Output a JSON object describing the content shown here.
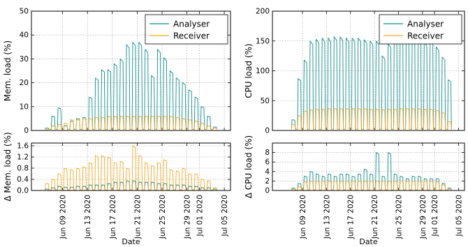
{
  "colors": {
    "analyser": "#0f8a8a",
    "receiver": "#f5a623",
    "grid": "#9a9a9a"
  },
  "chart_data": [
    {
      "id": "mem_load",
      "type": "line",
      "ylabel": "Mem. load (%)",
      "xlabel": "",
      "ylim": [
        0,
        50
      ],
      "yticks": [
        0,
        10,
        20,
        30,
        40,
        50
      ],
      "ytick_labels": [
        "0",
        "10",
        "20",
        "30",
        "40",
        "50"
      ],
      "x_range": [
        "2020-06-04",
        "2020-07-06"
      ],
      "grid": true,
      "legend_position": "top-right",
      "series": [
        {
          "name": "Analyser",
          "color_key": "analyser",
          "x": [
            "2020-06-06",
            "2020-06-07",
            "2020-06-08",
            "2020-06-09",
            "2020-06-10",
            "2020-06-11",
            "2020-06-12",
            "2020-06-13",
            "2020-06-14",
            "2020-06-15",
            "2020-06-16",
            "2020-06-17",
            "2020-06-18",
            "2020-06-19",
            "2020-06-20",
            "2020-06-21",
            "2020-06-22",
            "2020-06-23",
            "2020-06-24",
            "2020-06-25",
            "2020-06-26",
            "2020-06-27",
            "2020-06-28",
            "2020-06-29",
            "2020-06-30",
            "2020-07-01",
            "2020-07-02",
            "2020-07-03"
          ],
          "y": [
            1,
            6,
            9.5,
            2,
            4,
            5,
            5.5,
            14,
            22,
            25.5,
            25.5,
            28,
            30,
            36,
            37,
            37,
            34,
            23,
            34,
            30.5,
            25,
            22,
            20,
            17,
            14,
            10,
            6,
            1.5
          ]
        },
        {
          "name": "Receiver",
          "color_key": "receiver",
          "x": [
            "2020-06-06",
            "2020-06-07",
            "2020-06-08",
            "2020-06-09",
            "2020-06-10",
            "2020-06-11",
            "2020-06-12",
            "2020-06-13",
            "2020-06-14",
            "2020-06-15",
            "2020-06-16",
            "2020-06-17",
            "2020-06-18",
            "2020-06-19",
            "2020-06-20",
            "2020-06-21",
            "2020-06-22",
            "2020-06-23",
            "2020-06-24",
            "2020-06-25",
            "2020-06-26",
            "2020-06-27",
            "2020-06-28",
            "2020-06-29",
            "2020-06-30",
            "2020-07-01",
            "2020-07-02",
            "2020-07-03"
          ],
          "y": [
            0.5,
            2,
            2.5,
            3,
            4.5,
            4.5,
            5,
            5,
            5.5,
            5.5,
            6,
            6,
            6,
            6,
            6,
            6,
            6,
            6,
            6,
            6,
            6,
            5.5,
            5,
            4.5,
            4,
            3,
            2,
            1
          ]
        }
      ]
    },
    {
      "id": "cpu_load",
      "type": "line",
      "ylabel": "CPU load (%)",
      "xlabel": "",
      "ylim": [
        0,
        200
      ],
      "yticks": [
        0,
        50,
        100,
        150,
        200
      ],
      "ytick_labels": [
        "0",
        "50",
        "100",
        "150",
        "200"
      ],
      "x_range": [
        "2020-06-04",
        "2020-07-06"
      ],
      "grid": true,
      "legend_position": "top-right",
      "series": [
        {
          "name": "Analyser",
          "color_key": "analyser",
          "x": [
            "2020-06-07",
            "2020-06-08",
            "2020-06-09",
            "2020-06-10",
            "2020-06-11",
            "2020-06-12",
            "2020-06-13",
            "2020-06-14",
            "2020-06-15",
            "2020-06-16",
            "2020-06-17",
            "2020-06-18",
            "2020-06-19",
            "2020-06-20",
            "2020-06-21",
            "2020-06-22",
            "2020-06-23",
            "2020-06-24",
            "2020-06-25",
            "2020-06-26",
            "2020-06-27",
            "2020-06-28",
            "2020-06-29",
            "2020-06-30",
            "2020-07-01",
            "2020-07-02",
            "2020-07-03"
          ],
          "y": [
            18,
            87,
            118,
            150,
            153,
            155,
            155,
            157,
            157,
            155,
            155,
            155,
            152,
            150,
            150,
            125,
            145,
            153,
            157,
            157,
            152,
            150,
            148,
            155,
            140,
            123,
            85
          ]
        },
        {
          "name": "Receiver",
          "color_key": "receiver",
          "x": [
            "2020-06-07",
            "2020-06-08",
            "2020-06-09",
            "2020-06-10",
            "2020-06-11",
            "2020-06-12",
            "2020-06-13",
            "2020-06-14",
            "2020-06-15",
            "2020-06-16",
            "2020-06-17",
            "2020-06-18",
            "2020-06-19",
            "2020-06-20",
            "2020-06-21",
            "2020-06-22",
            "2020-06-23",
            "2020-06-24",
            "2020-06-25",
            "2020-06-26",
            "2020-06-27",
            "2020-06-28",
            "2020-06-29",
            "2020-06-30",
            "2020-07-01",
            "2020-07-02",
            "2020-07-03"
          ],
          "y": [
            10,
            25,
            33,
            35,
            36,
            36,
            37,
            37,
            37,
            37,
            37,
            37,
            37,
            36,
            36,
            35,
            36,
            36,
            37,
            37,
            37,
            37,
            36,
            36,
            34,
            30,
            15
          ]
        }
      ]
    },
    {
      "id": "delta_mem",
      "type": "line",
      "ylabel": "Δ Mem. load (%)",
      "xlabel": "Date",
      "ylim": [
        0,
        1.7
      ],
      "yticks": [
        0,
        0.4,
        0.8,
        1.2,
        1.6
      ],
      "ytick_labels": [
        "0.0",
        "0.4",
        "0.8",
        "1.2",
        "1.6"
      ],
      "x_range": [
        "2020-06-04",
        "2020-07-06"
      ],
      "xticks": [
        "2020-06-09",
        "2020-06-13",
        "2020-06-17",
        "2020-06-21",
        "2020-06-25",
        "2020-06-29",
        "2020-07-01",
        "2020-07-05"
      ],
      "xtick_labels": [
        "Jun 09 2020",
        "Jun 13 2020",
        "Jun 17 2020",
        "Jun 21 2020",
        "Jun 25 2020",
        "Jun 29 2020",
        "Jul 01 2020",
        "Jul 05 2020"
      ],
      "grid": true,
      "series": [
        {
          "name": "Analyser",
          "color_key": "analyser",
          "x": [
            "2020-06-06",
            "2020-06-07",
            "2020-06-08",
            "2020-06-09",
            "2020-06-10",
            "2020-06-11",
            "2020-06-12",
            "2020-06-13",
            "2020-06-14",
            "2020-06-15",
            "2020-06-16",
            "2020-06-17",
            "2020-06-18",
            "2020-06-19",
            "2020-06-20",
            "2020-06-21",
            "2020-06-22",
            "2020-06-23",
            "2020-06-24",
            "2020-06-25",
            "2020-06-26",
            "2020-06-27",
            "2020-06-28",
            "2020-06-29",
            "2020-06-30",
            "2020-07-01",
            "2020-07-02",
            "2020-07-03"
          ],
          "y": [
            0.05,
            0.1,
            0.15,
            0.12,
            0.12,
            0.15,
            0.15,
            0.2,
            0.2,
            0.2,
            0.25,
            0.3,
            0.3,
            0.35,
            0.35,
            0.3,
            0.3,
            0.3,
            0.25,
            0.25,
            0.2,
            0.2,
            0.2,
            0.15,
            0.15,
            0.1,
            0.1,
            0.05
          ]
        },
        {
          "name": "Receiver",
          "color_key": "receiver",
          "x": [
            "2020-06-06",
            "2020-06-07",
            "2020-06-08",
            "2020-06-09",
            "2020-06-10",
            "2020-06-11",
            "2020-06-12",
            "2020-06-13",
            "2020-06-14",
            "2020-06-15",
            "2020-06-16",
            "2020-06-17",
            "2020-06-18",
            "2020-06-19",
            "2020-06-20",
            "2020-06-21",
            "2020-06-22",
            "2020-06-23",
            "2020-06-24",
            "2020-06-25",
            "2020-06-26",
            "2020-06-27",
            "2020-06-28",
            "2020-06-29",
            "2020-06-30",
            "2020-07-01",
            "2020-07-02",
            "2020-07-03"
          ],
          "y": [
            0.25,
            0.4,
            0.6,
            0.8,
            0.75,
            0.8,
            0.85,
            1.0,
            1.25,
            1.25,
            1.2,
            1.0,
            1.05,
            0.8,
            1.6,
            1.25,
            1.0,
            0.9,
            1.0,
            1.1,
            0.75,
            0.7,
            0.8,
            0.6,
            0.6,
            0.4,
            0.35,
            0.1
          ]
        }
      ]
    },
    {
      "id": "delta_cpu",
      "type": "line",
      "ylabel": "Δ CPU load (%)",
      "xlabel": "Date",
      "ylim": [
        0,
        10
      ],
      "yticks": [
        0,
        2,
        4,
        6,
        8
      ],
      "ytick_labels": [
        "0",
        "2",
        "4",
        "6",
        "8"
      ],
      "x_range": [
        "2020-06-04",
        "2020-07-06"
      ],
      "xticks": [
        "2020-06-09",
        "2020-06-13",
        "2020-06-17",
        "2020-06-21",
        "2020-06-25",
        "2020-06-29",
        "2020-07-01",
        "2020-07-05"
      ],
      "xtick_labels": [
        "Jun 09 2020",
        "Jun 13 2020",
        "Jun 17 2020",
        "Jun 21 2020",
        "Jun 25 2020",
        "Jun 29 2020",
        "Jul 01 2020",
        "Jul 05 2020"
      ],
      "grid": true,
      "series": [
        {
          "name": "Analyser",
          "color_key": "analyser",
          "x": [
            "2020-06-07",
            "2020-06-08",
            "2020-06-09",
            "2020-06-10",
            "2020-06-11",
            "2020-06-12",
            "2020-06-13",
            "2020-06-14",
            "2020-06-15",
            "2020-06-16",
            "2020-06-17",
            "2020-06-18",
            "2020-06-19",
            "2020-06-20",
            "2020-06-21",
            "2020-06-22",
            "2020-06-23",
            "2020-06-24",
            "2020-06-25",
            "2020-06-26",
            "2020-06-27",
            "2020-06-28",
            "2020-06-29",
            "2020-06-30",
            "2020-07-01",
            "2020-07-02",
            "2020-07-03"
          ],
          "y": [
            0.5,
            1.5,
            3,
            4,
            3.5,
            3,
            3.5,
            3,
            3.5,
            3.5,
            3,
            3.5,
            4.5,
            3.5,
            8,
            3,
            8,
            3.5,
            3,
            2.5,
            3,
            3,
            2.5,
            2.5,
            2.5,
            1.5,
            0.5
          ]
        },
        {
          "name": "Receiver",
          "color_key": "receiver",
          "x": [
            "2020-06-07",
            "2020-06-08",
            "2020-06-09",
            "2020-06-10",
            "2020-06-11",
            "2020-06-12",
            "2020-06-13",
            "2020-06-14",
            "2020-06-15",
            "2020-06-16",
            "2020-06-17",
            "2020-06-18",
            "2020-06-19",
            "2020-06-20",
            "2020-06-21",
            "2020-06-22",
            "2020-06-23",
            "2020-06-24",
            "2020-06-25",
            "2020-06-26",
            "2020-06-27",
            "2020-06-28",
            "2020-06-29",
            "2020-06-30",
            "2020-07-01",
            "2020-07-02",
            "2020-07-03"
          ],
          "y": [
            0.3,
            0.8,
            1.8,
            2,
            2,
            2,
            2,
            2,
            2,
            2,
            2,
            2,
            2,
            2,
            2,
            2,
            2,
            2,
            2,
            2,
            2,
            2,
            2,
            2,
            1.8,
            1.2,
            0.3
          ]
        }
      ]
    }
  ]
}
